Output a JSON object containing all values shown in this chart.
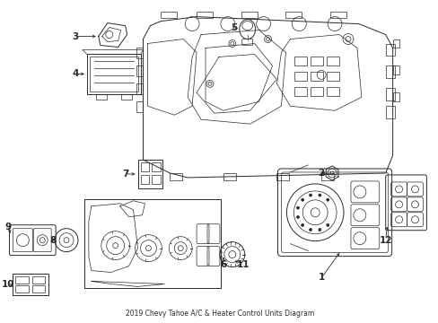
{
  "title": "2019 Chevy Tahoe A/C & Heater Control Units Diagram",
  "bg": "#ffffff",
  "lc": "#2a2a2a",
  "figsize": [
    4.89,
    3.6
  ],
  "dpi": 100
}
